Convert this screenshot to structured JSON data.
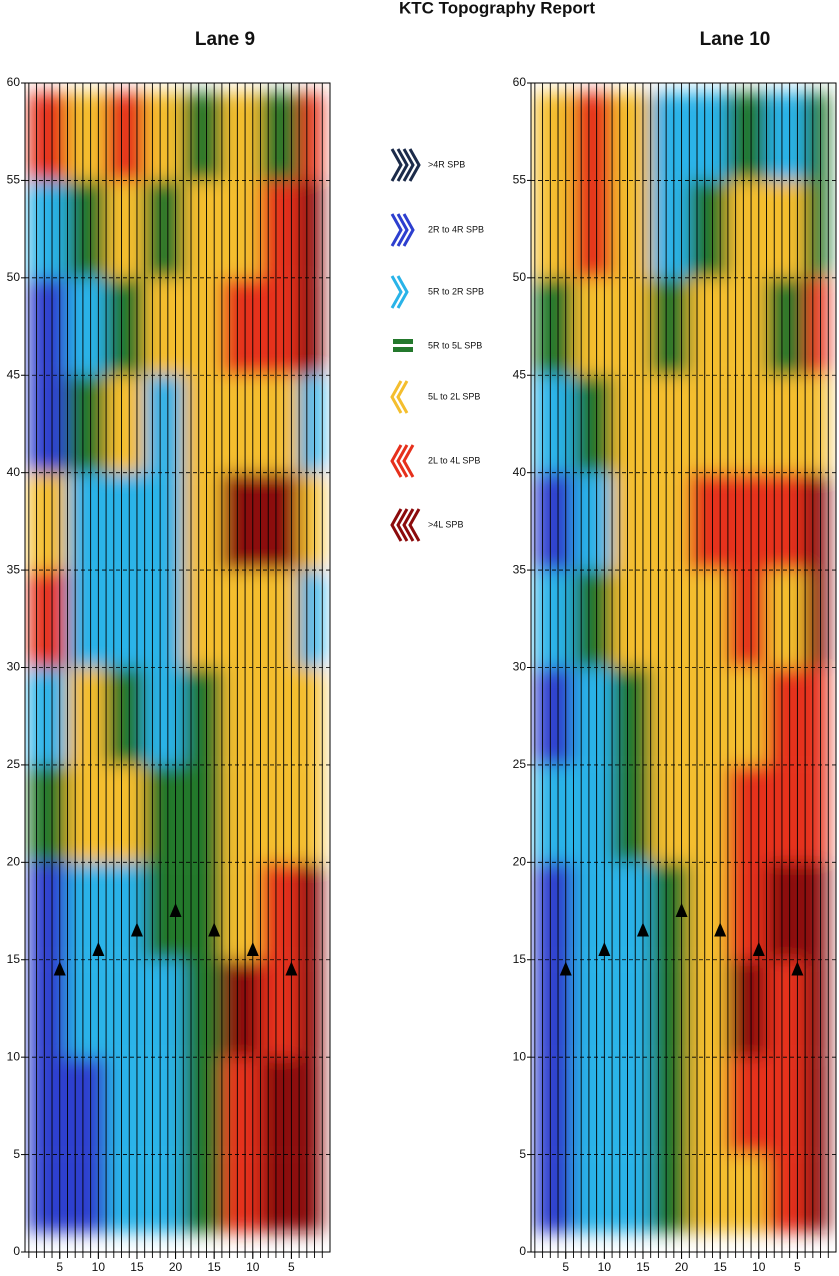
{
  "title": "KTC Topography Report",
  "legend": [
    {
      "value": -3,
      "label": ">4R SPB",
      "color": "#1c2b4a"
    },
    {
      "value": -2,
      "label": "2R to 4R SPB",
      "color": "#2d3fcf"
    },
    {
      "value": -1,
      "label": "5R to 2R SPB",
      "color": "#29b3e8"
    },
    {
      "value": 0,
      "label": "5R to 5L SPB",
      "color": "#23782c"
    },
    {
      "value": 1,
      "label": "5L to 2L SPB",
      "color": "#f4be2e"
    },
    {
      "value": 2,
      "label": "2L to 4L SPB",
      "color": "#e6301c"
    },
    {
      "value": 3,
      "label": ">4L SPB",
      "color": "#8c0b0c"
    }
  ],
  "chart_data": [
    {
      "type": "heatmap",
      "title": "Lane 9",
      "x_edges": [
        1,
        6,
        11,
        16,
        21,
        26,
        31,
        36,
        39
      ],
      "y_edges": [
        1,
        5,
        10,
        15,
        20,
        25,
        30,
        35,
        40,
        45,
        50,
        55,
        59.5
      ],
      "z": [
        [
          -2,
          -2,
          -1,
          -1,
          0,
          2,
          3,
          3
        ],
        [
          -2,
          -2,
          -1,
          -1,
          0,
          2,
          3,
          3
        ],
        [
          -2,
          -1,
          -1,
          -1,
          0,
          3,
          2,
          3
        ],
        [
          -2,
          -1,
          -1,
          0,
          0,
          1,
          2,
          3
        ],
        [
          0,
          1,
          1,
          0,
          0,
          1,
          1,
          1
        ],
        [
          -1,
          1,
          0,
          -1,
          0,
          1,
          1,
          1
        ],
        [
          2,
          -1,
          -1,
          -1,
          1,
          1,
          1,
          -1
        ],
        [
          1,
          -1,
          -1,
          -1,
          1,
          3,
          3,
          1
        ],
        [
          -2,
          0,
          1,
          -1,
          1,
          1,
          1,
          -1
        ],
        [
          -2,
          -1,
          0,
          1,
          1,
          2,
          2,
          3
        ],
        [
          -1,
          0,
          1,
          0,
          1,
          1,
          2,
          3
        ],
        [
          2,
          1,
          2,
          1,
          0,
          1,
          0,
          2
        ]
      ],
      "xlim": [
        0.5,
        40
      ],
      "ylim": [
        0,
        60
      ],
      "xticks": [
        5,
        10,
        15,
        20,
        {
          "value": 25,
          "label": "15"
        },
        {
          "value": 30,
          "label": "10"
        },
        {
          "value": 35,
          "label": "5"
        }
      ],
      "yticks": [
        0,
        5,
        10,
        15,
        20,
        25,
        30,
        35,
        40,
        45,
        50,
        55,
        60
      ],
      "grid": true,
      "markers": {
        "x": [
          5,
          10,
          15,
          20,
          25,
          30,
          35
        ],
        "y": [
          14.5,
          15.5,
          16.5,
          17.5,
          16.5,
          15.5,
          14.5
        ]
      }
    },
    {
      "type": "heatmap",
      "title": "Lane 10",
      "x_edges": [
        1,
        6,
        11,
        16,
        21,
        26,
        31,
        36,
        39
      ],
      "y_edges": [
        1,
        5,
        10,
        15,
        20,
        25,
        30,
        35,
        40,
        45,
        50,
        55,
        59.5
      ],
      "z": [
        [
          -2,
          -1,
          -1,
          0,
          1,
          1,
          2,
          3
        ],
        [
          -2,
          -1,
          -1,
          0,
          1,
          2,
          2,
          3
        ],
        [
          -2,
          -1,
          -1,
          0,
          1,
          3,
          2,
          3
        ],
        [
          -2,
          -1,
          -1,
          0,
          1,
          2,
          3,
          3
        ],
        [
          -1,
          -1,
          0,
          1,
          1,
          2,
          2,
          2
        ],
        [
          -2,
          -1,
          0,
          1,
          1,
          1,
          2,
          2
        ],
        [
          -1,
          0,
          1,
          1,
          1,
          2,
          1,
          3
        ],
        [
          -2,
          -1,
          1,
          1,
          2,
          2,
          2,
          3
        ],
        [
          -1,
          0,
          1,
          1,
          1,
          1,
          1,
          1
        ],
        [
          0,
          1,
          1,
          0,
          1,
          1,
          0,
          2
        ],
        [
          1,
          2,
          1,
          -1,
          0,
          1,
          1,
          0
        ],
        [
          1,
          2,
          1,
          -1,
          -1,
          0,
          -1,
          0
        ]
      ],
      "xlim": [
        0.5,
        40
      ],
      "ylim": [
        0,
        60
      ],
      "xticks": [
        5,
        10,
        15,
        20,
        {
          "value": 25,
          "label": "15"
        },
        {
          "value": 30,
          "label": "10"
        },
        {
          "value": 35,
          "label": "5"
        }
      ],
      "yticks": [
        0,
        5,
        10,
        15,
        20,
        25,
        30,
        35,
        40,
        45,
        50,
        55,
        60
      ],
      "grid": true,
      "markers": {
        "x": [
          5,
          10,
          15,
          20,
          25,
          30,
          35
        ],
        "y": [
          14.5,
          15.5,
          16.5,
          17.5,
          16.5,
          15.5,
          14.5
        ]
      }
    }
  ]
}
